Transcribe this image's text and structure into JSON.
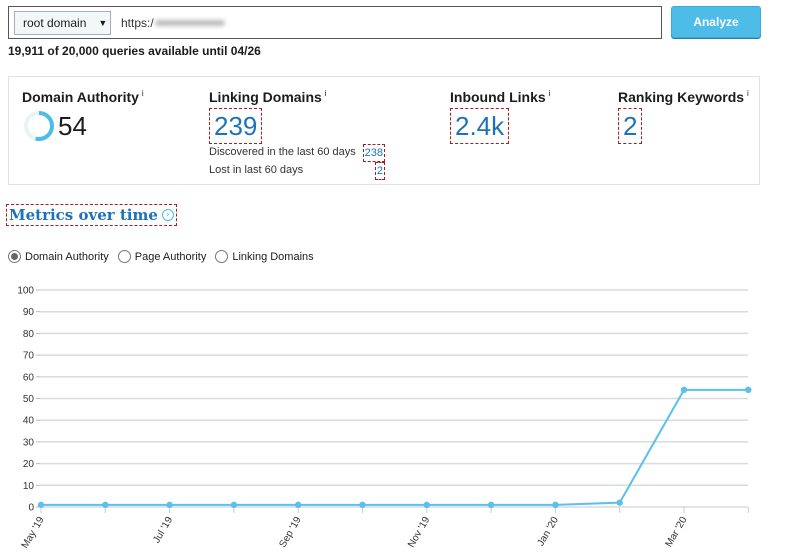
{
  "search": {
    "scope_select": "root domain",
    "url_value": "https:/",
    "analyze_label": "Analyze"
  },
  "quota_text": "19,911 of 20,000 queries available until 04/26",
  "metrics": {
    "domain_authority": {
      "title": "Domain Authority",
      "info": "i",
      "value": "54"
    },
    "linking_domains": {
      "title": "Linking Domains",
      "info": "i",
      "value": "239",
      "discovered_label": "Discovered in the last 60 days",
      "discovered_value": "238",
      "lost_label": "Lost in last 60 days",
      "lost_value": "2"
    },
    "inbound_links": {
      "title": "Inbound Links",
      "info": "i",
      "value": "2.4k"
    },
    "ranking_keywords": {
      "title": "Ranking Keywords",
      "info": "i",
      "value": "2"
    }
  },
  "section": {
    "title": "Metrics over time",
    "icon": "chevron-right-circle-icon"
  },
  "radios": [
    {
      "label": "Domain Authority",
      "checked": true
    },
    {
      "label": "Page Authority",
      "checked": false
    },
    {
      "label": "Linking Domains",
      "checked": false
    }
  ],
  "colors": {
    "accent": "#1e72b8",
    "button": "#4dbce8",
    "line": "#5bc0eb",
    "grid": "#d8dcdc"
  },
  "chart_data": {
    "type": "line",
    "title": "",
    "xlabel": "",
    "ylabel": "",
    "ylim": [
      0,
      100
    ],
    "yticks": [
      0,
      10,
      20,
      30,
      40,
      50,
      60,
      70,
      80,
      90,
      100
    ],
    "xtick_labels": [
      "May '19",
      "Jul '19",
      "Sep '19",
      "Nov '19",
      "Jan '20",
      "Mar '20"
    ],
    "x": [
      "May '19",
      "Jun '19",
      "Jul '19",
      "Aug '19",
      "Sep '19",
      "Oct '19",
      "Nov '19",
      "Dec '19",
      "Jan '20",
      "Feb '20",
      "Mar '20",
      "Apr '20"
    ],
    "series": [
      {
        "name": "Domain Authority",
        "values": [
          1,
          1,
          1,
          1,
          1,
          1,
          1,
          1,
          1,
          2,
          54,
          54
        ]
      }
    ],
    "grid": true,
    "legend": "none"
  }
}
